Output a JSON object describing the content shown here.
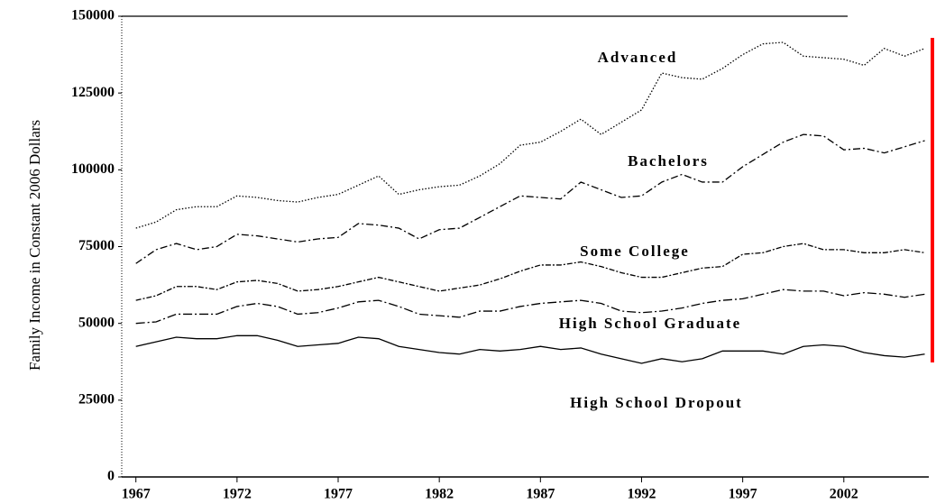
{
  "chart_data": {
    "type": "line",
    "y_label": "Family Income in Constant 2006 Dollars",
    "x": [
      1967,
      1968,
      1969,
      1970,
      1971,
      1972,
      1973,
      1974,
      1975,
      1976,
      1977,
      1978,
      1979,
      1980,
      1981,
      1982,
      1983,
      1984,
      1985,
      1986,
      1987,
      1988,
      1989,
      1990,
      1991,
      1992,
      1993,
      1994,
      1995,
      1996,
      1997,
      1998,
      1999,
      2000,
      2001,
      2002,
      2003,
      2004,
      2005,
      2006
    ],
    "series": [
      {
        "name": "Advanced",
        "color": "#000000",
        "values": [
          81000,
          83000,
          87000,
          88000,
          88000,
          91500,
          91000,
          90000,
          89500,
          91000,
          92000,
          95000,
          98000,
          92000,
          93500,
          94500,
          95000,
          98000,
          102000,
          108000,
          109000,
          112500,
          116500,
          111500,
          115500,
          119500,
          131500,
          130000,
          129500,
          133000,
          137500,
          141000,
          141500,
          137000,
          136500,
          136000,
          134000,
          139500,
          137000,
          139500
        ]
      },
      {
        "name": "Bachelors",
        "color": "#000000",
        "values": [
          69500,
          74000,
          76000,
          74000,
          75000,
          79000,
          78500,
          77500,
          76500,
          77500,
          78000,
          82500,
          82000,
          81000,
          77500,
          80500,
          81000,
          84500,
          88000,
          91500,
          91000,
          90500,
          96000,
          93500,
          91000,
          91500,
          96000,
          98500,
          96000,
          96000,
          101000,
          105000,
          109000,
          111500,
          111000,
          106500,
          107000,
          105500,
          107500,
          109500
        ]
      },
      {
        "name": "Some College",
        "color": "#000000",
        "values": [
          57500,
          59000,
          62000,
          62000,
          61000,
          63500,
          64000,
          63000,
          60500,
          61000,
          62000,
          63500,
          65000,
          63500,
          62000,
          60500,
          61500,
          62500,
          64500,
          67000,
          69000,
          69000,
          70000,
          68500,
          66500,
          65000,
          65000,
          66500,
          68000,
          68500,
          72500,
          73000,
          75000,
          76000,
          74000,
          74000,
          73000,
          73000,
          74000,
          73000
        ]
      },
      {
        "name": "High School Graduate",
        "color": "#000000",
        "values": [
          50000,
          50500,
          53000,
          53000,
          53000,
          55500,
          56500,
          55500,
          53000,
          53500,
          55000,
          57000,
          57500,
          55500,
          53000,
          52500,
          52000,
          54000,
          54000,
          55500,
          56500,
          57000,
          57500,
          56500,
          54000,
          53500,
          54000,
          55000,
          56500,
          57500,
          58000,
          59500,
          61000,
          60500,
          60500,
          59000,
          60000,
          59500,
          58500,
          59500
        ]
      },
      {
        "name": "High School Dropout",
        "color": "#000000",
        "values": [
          42500,
          44000,
          45500,
          45000,
          45000,
          46000,
          46000,
          44500,
          42500,
          43000,
          43500,
          45500,
          45000,
          42500,
          41500,
          40500,
          40000,
          41500,
          41000,
          41500,
          42500,
          41500,
          42000,
          40000,
          38500,
          37000,
          38500,
          37500,
          38500,
          41000,
          41000,
          41000,
          40000,
          42500,
          43000,
          42500,
          40500,
          39500,
          39000,
          40000
        ]
      }
    ],
    "xlim": [
      1966.3,
      2006.2
    ],
    "xticks": [
      1967,
      1972,
      1977,
      1982,
      1987,
      1992,
      1997,
      2002
    ],
    "ylim": [
      0,
      150000
    ],
    "yticks": [
      0,
      25000,
      50000,
      75000,
      100000,
      125000,
      150000
    ]
  }
}
